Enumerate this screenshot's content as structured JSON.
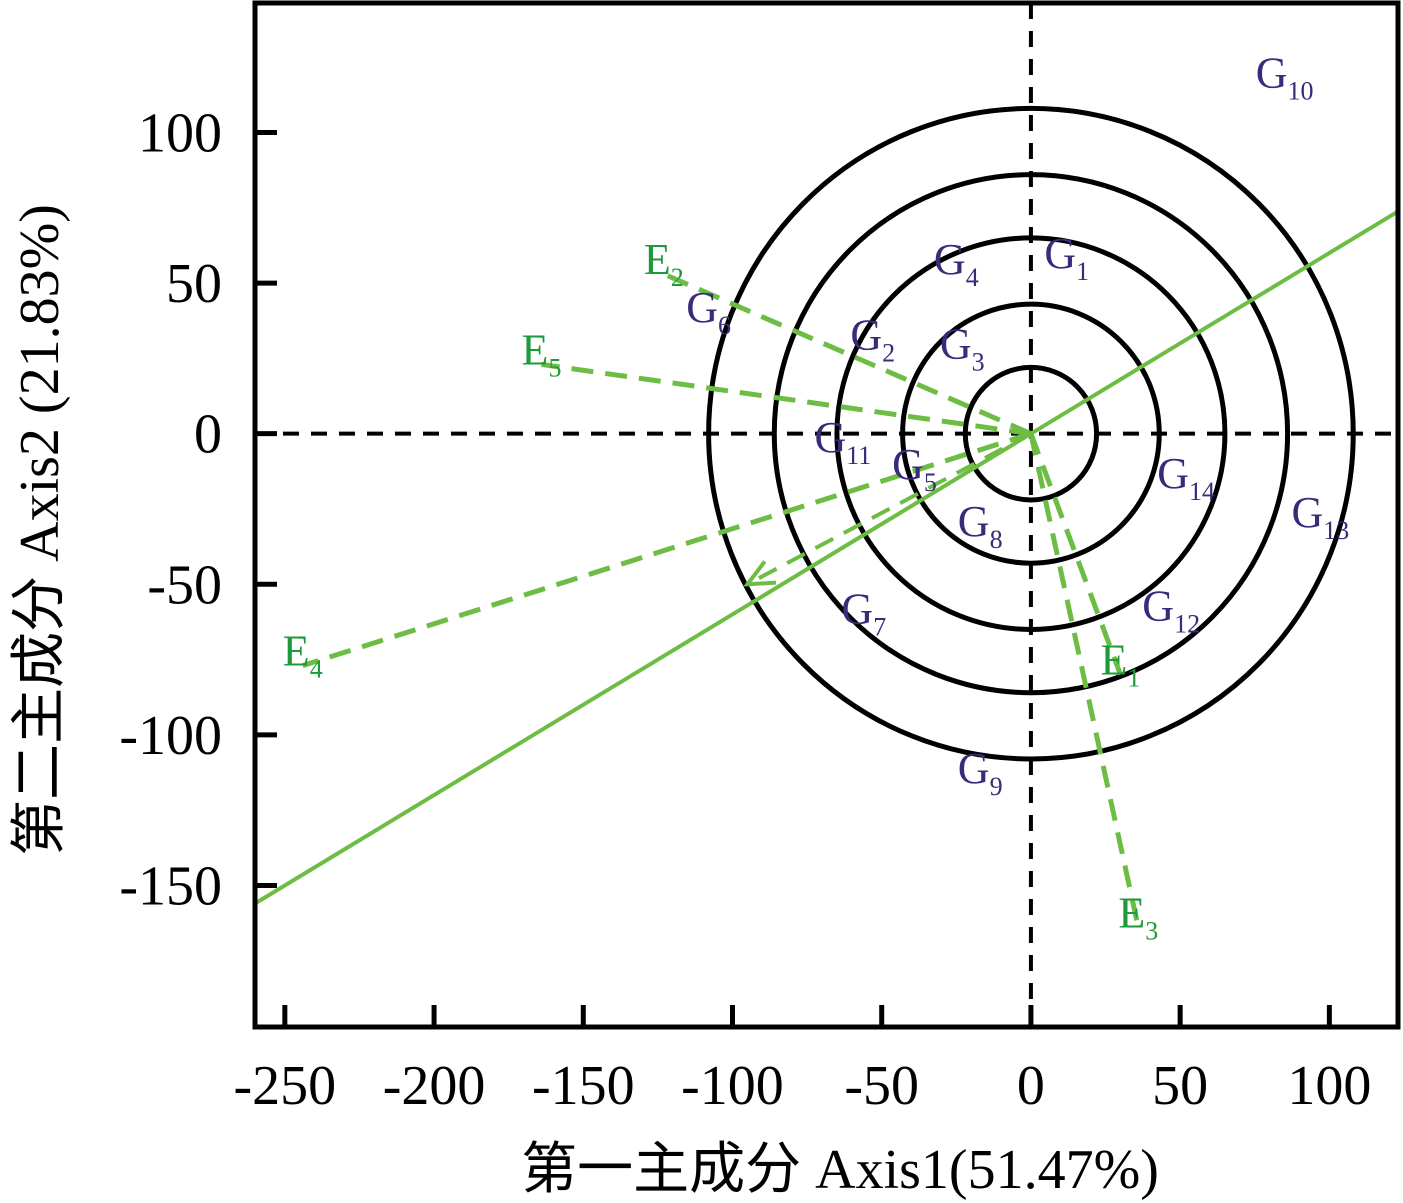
{
  "chart_data": {
    "type": "scatter",
    "xlabel": "第一主成分 Axis1(51.47%)",
    "ylabel": "第二主成分 Axis2 (21.83%)",
    "xlim": [
      -260,
      123
    ],
    "ylim": [
      -197,
      143
    ],
    "xticks": [
      -250,
      -200,
      -150,
      -100,
      -50,
      0,
      50,
      100
    ],
    "yticks": [
      -150,
      -100,
      -50,
      0,
      50,
      100
    ],
    "grid": false,
    "genotypes": [
      {
        "label": "G",
        "sub": "1",
        "x": 12,
        "y": 55
      },
      {
        "label": "G",
        "sub": "2",
        "x": -53,
        "y": 28
      },
      {
        "label": "G",
        "sub": "3",
        "x": -23,
        "y": 25
      },
      {
        "label": "G",
        "sub": "4",
        "x": -25,
        "y": 53
      },
      {
        "label": "G",
        "sub": "5",
        "x": -39,
        "y": -15
      },
      {
        "label": "G",
        "sub": "6",
        "x": -108,
        "y": 37
      },
      {
        "label": "G",
        "sub": "7",
        "x": -56,
        "y": -63
      },
      {
        "label": "G",
        "sub": "8",
        "x": -17,
        "y": -34
      },
      {
        "label": "G",
        "sub": "9",
        "x": -17,
        "y": -116
      },
      {
        "label": "G",
        "sub": "10",
        "x": 85,
        "y": 115
      },
      {
        "label": "G",
        "sub": "11",
        "x": -63,
        "y": -6
      },
      {
        "label": "G",
        "sub": "12",
        "x": 47,
        "y": -62
      },
      {
        "label": "G",
        "sub": "13",
        "x": 97,
        "y": -31
      },
      {
        "label": "G",
        "sub": "14",
        "x": 52,
        "y": -18
      }
    ],
    "environments": [
      {
        "label": "E",
        "sub": "1",
        "x": 30,
        "y": -80
      },
      {
        "label": "E",
        "sub": "2",
        "x": -123,
        "y": 53
      },
      {
        "label": "E",
        "sub": "3",
        "x": 36,
        "y": -164
      },
      {
        "label": "E",
        "sub": "4",
        "x": -244,
        "y": -77
      },
      {
        "label": "E",
        "sub": "5",
        "x": -164,
        "y": 23
      }
    ],
    "circle_radii": [
      22,
      43,
      65,
      86,
      108
    ],
    "line": {
      "slope": 0.6,
      "x_range": [
        -260,
        123
      ]
    },
    "arrow_point": {
      "x": -95,
      "y": -50
    }
  },
  "colors": {
    "genotype": "#3b2a7a",
    "environment": "#1e9a3a",
    "vector": "#6dbd45",
    "axis": "#000000"
  }
}
